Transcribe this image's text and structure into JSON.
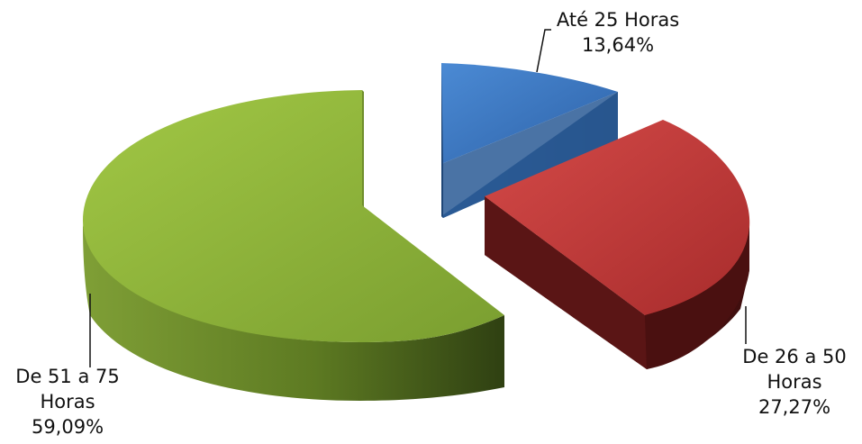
{
  "chart_data": {
    "type": "pie",
    "style": "3d-exploded",
    "legend": "none",
    "slices": [
      {
        "label_lines": [
          "Até 25 Horas"
        ],
        "value": 13.64,
        "value_label": "13,64%",
        "color": "#3a76c0"
      },
      {
        "label_lines": [
          "De 26 a 50",
          "Horas"
        ],
        "value": 27.27,
        "value_label": "27,27%",
        "color": "#c0393a"
      },
      {
        "label_lines": [
          "De 51 a 75",
          "Horas"
        ],
        "value": 59.09,
        "value_label": "59,09%",
        "color": "#8db23a"
      }
    ]
  }
}
